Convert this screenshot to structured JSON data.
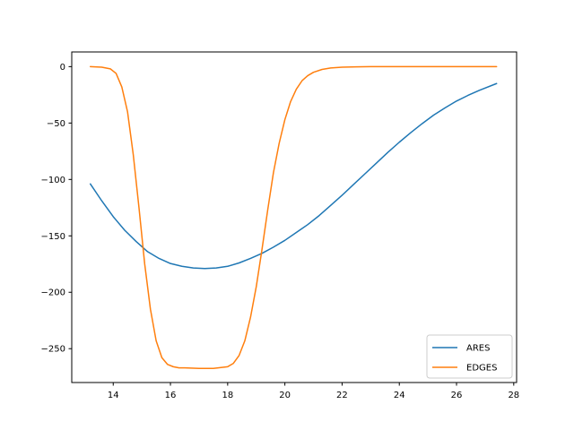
{
  "chart_data": {
    "type": "line",
    "title": "",
    "xlabel": "",
    "ylabel": "",
    "xlim": [
      12.55,
      28.1
    ],
    "ylim": [
      -280,
      13
    ],
    "xticks": [
      14,
      16,
      18,
      20,
      22,
      24,
      26,
      28
    ],
    "yticks": [
      0,
      -50,
      -100,
      -150,
      -200,
      -250
    ],
    "ytick_labels": [
      "0",
      "−50",
      "−100",
      "−150",
      "−200",
      "−250"
    ],
    "grid": false,
    "legend_position": "lower right",
    "series": [
      {
        "name": "ARES",
        "color": "#1f77b4",
        "x": [
          13.2,
          13.6,
          14.0,
          14.4,
          14.8,
          15.2,
          15.6,
          16.0,
          16.4,
          16.8,
          17.2,
          17.6,
          18.0,
          18.4,
          18.8,
          19.2,
          19.6,
          20.0,
          20.4,
          20.8,
          21.2,
          21.6,
          22.0,
          22.4,
          22.8,
          23.2,
          23.6,
          24.0,
          24.4,
          24.8,
          25.2,
          25.6,
          26.0,
          26.4,
          26.8,
          27.4
        ],
        "y": [
          -104,
          -119,
          -133,
          -145,
          -155,
          -164,
          -170,
          -174.5,
          -177,
          -178.5,
          -179,
          -178.5,
          -177,
          -174,
          -170,
          -165.5,
          -160,
          -154,
          -147,
          -140,
          -132,
          -123,
          -114,
          -104.5,
          -95,
          -85.5,
          -76,
          -67,
          -58.5,
          -50.5,
          -43,
          -36.5,
          -30.5,
          -25.5,
          -21,
          -15
        ]
      },
      {
        "name": "EDGES",
        "color": "#ff7f0e",
        "x": [
          13.2,
          13.6,
          13.9,
          14.1,
          14.3,
          14.5,
          14.7,
          14.9,
          15.1,
          15.3,
          15.5,
          15.7,
          15.9,
          16.1,
          16.3,
          16.5,
          17.0,
          17.5,
          18.0,
          18.2,
          18.4,
          18.6,
          18.8,
          19.0,
          19.2,
          19.4,
          19.6,
          19.8,
          20.0,
          20.2,
          20.4,
          20.6,
          20.8,
          21.0,
          21.3,
          21.6,
          22.0,
          22.5,
          23.0,
          24.0,
          25.0,
          26.0,
          27.4
        ],
        "y": [
          0,
          -0.5,
          -2,
          -6,
          -18,
          -40,
          -78,
          -125,
          -175,
          -215,
          -243,
          -258,
          -264,
          -266,
          -267,
          -267,
          -267.5,
          -267.5,
          -266,
          -263,
          -256,
          -243,
          -222,
          -195,
          -162,
          -127,
          -94,
          -68,
          -47,
          -31,
          -20,
          -12.5,
          -8,
          -5,
          -2.5,
          -1.2,
          -0.5,
          -0.2,
          0,
          0,
          0,
          0,
          0
        ]
      }
    ]
  }
}
